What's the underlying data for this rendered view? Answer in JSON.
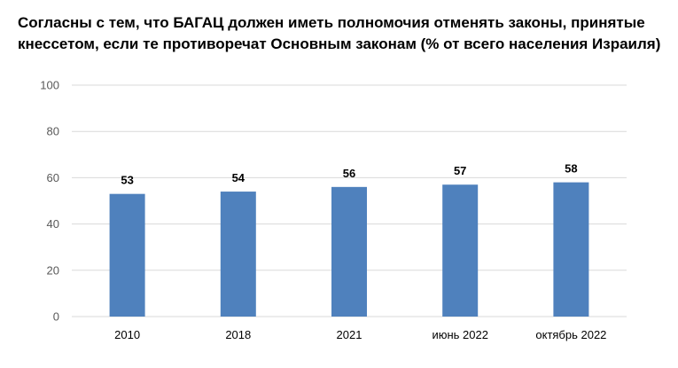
{
  "chart_data": {
    "type": "bar",
    "title_lines": [
      "Согласны с тем, что БАГАЦ должен иметь полномочия отменять законы, принятые",
      "кнессетом, если те противоречат Основным законам (% от всего населения Израиля)"
    ],
    "categories": [
      "2010",
      "2018",
      "2021",
      "июнь 2022",
      "октябрь 2022"
    ],
    "values": [
      53,
      54,
      56,
      57,
      58
    ],
    "data_labels": [
      "53",
      "54",
      "56",
      "57",
      "58"
    ],
    "ylim": [
      0,
      100
    ],
    "yticks": [
      0,
      20,
      40,
      60,
      80,
      100
    ],
    "grid": true,
    "legend": "none",
    "bar_color": "#4f81bd",
    "grid_color": "#d9d9d9"
  }
}
